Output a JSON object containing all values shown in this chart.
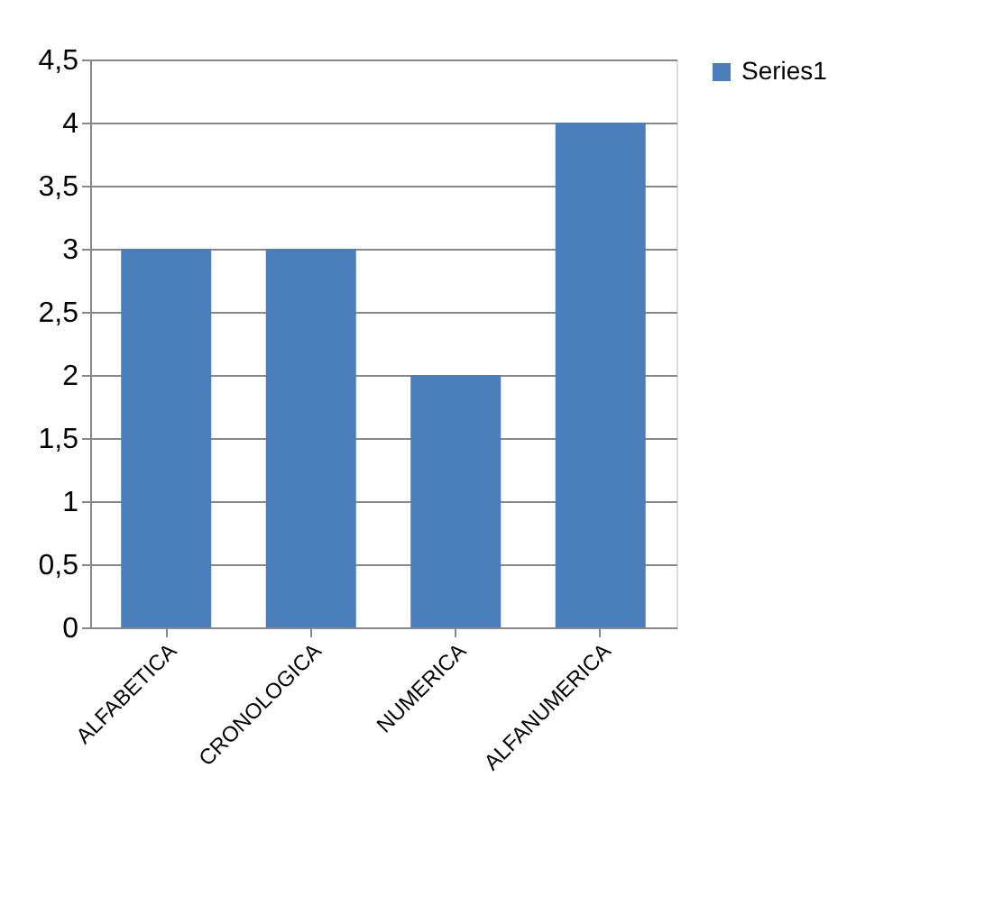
{
  "chart_data": {
    "type": "bar",
    "categories": [
      "ALFABETICA",
      "CRONOLOGICA",
      "NUMERICA",
      "ALFANUMERICA"
    ],
    "series": [
      {
        "name": "Series1",
        "color": "#4a7ebb",
        "values": [
          3,
          3,
          2,
          4
        ]
      }
    ],
    "ylim": [
      0,
      4.5
    ],
    "yticks": [
      0,
      {
        "value": 0.5,
        "label": "0,5"
      },
      1,
      {
        "value": 1.5,
        "label": "1,5"
      },
      2,
      {
        "value": 2.5,
        "label": "2,5"
      },
      3,
      {
        "value": 3.5,
        "label": "3,5"
      },
      4,
      {
        "value": 4.5,
        "label": "4,5"
      }
    ],
    "grid": "y",
    "legend": "right"
  }
}
